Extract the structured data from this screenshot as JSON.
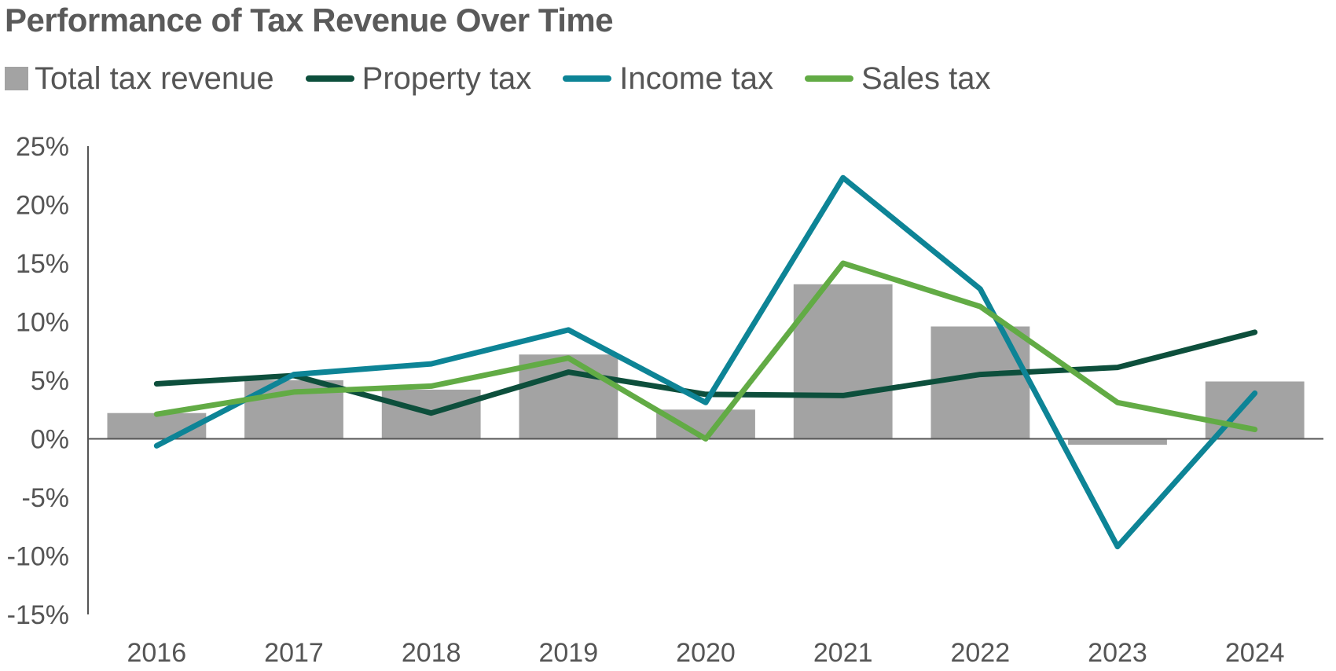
{
  "chart_data": {
    "type": "bar+line",
    "title": "Performance of Tax Revenue Over Time",
    "xlabel": "",
    "ylabel": "",
    "categories": [
      "2016",
      "2017",
      "2018",
      "2019",
      "2020",
      "2021",
      "2022",
      "2023",
      "2024"
    ],
    "ylim": [
      -15,
      25
    ],
    "yticks": [
      25,
      20,
      15,
      10,
      5,
      0,
      -5,
      -10,
      -15
    ],
    "ytick_labels": [
      "25%",
      "20%",
      "15%",
      "10%",
      "5%",
      "0%",
      "-5%",
      "-10%",
      "-15%"
    ],
    "grid": false,
    "legend_position": "top-left",
    "series": [
      {
        "name": "Total tax revenue",
        "type": "bar",
        "color": "#a3a3a3",
        "values": [
          2.2,
          5.0,
          4.2,
          7.2,
          2.5,
          13.2,
          9.6,
          -0.5,
          4.9
        ]
      },
      {
        "name": "Property tax",
        "type": "line",
        "color": "#0d4f3c",
        "values": [
          4.7,
          5.4,
          2.2,
          5.7,
          3.8,
          3.7,
          5.5,
          6.1,
          9.1
        ]
      },
      {
        "name": "Income tax",
        "type": "line",
        "color": "#0d8496",
        "values": [
          -0.6,
          5.5,
          6.4,
          9.3,
          3.1,
          22.3,
          12.8,
          -9.2,
          3.9
        ]
      },
      {
        "name": "Sales tax",
        "type": "line",
        "color": "#62ab45",
        "values": [
          2.1,
          4.0,
          4.5,
          6.9,
          0.0,
          15.0,
          11.3,
          3.1,
          0.8
        ]
      }
    ]
  }
}
